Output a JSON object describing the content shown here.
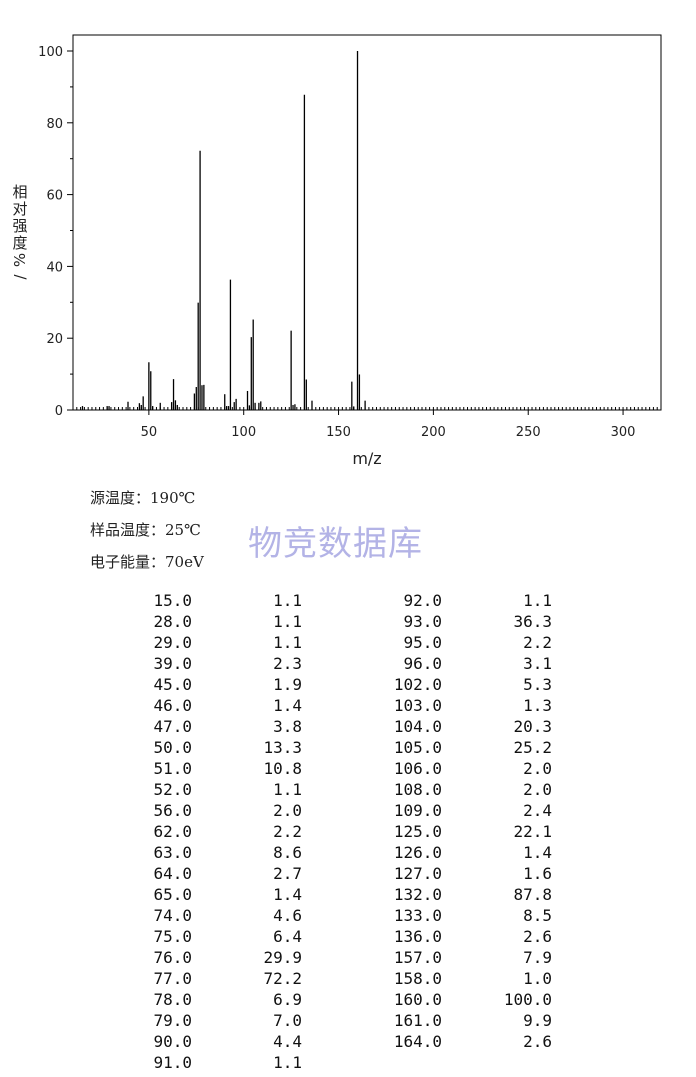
{
  "chart_data": {
    "type": "bar",
    "xlabel": "m/z",
    "ylabel_chars": [
      "相",
      "对",
      "强",
      "度",
      "%",
      "/"
    ],
    "xlim": [
      10,
      320
    ],
    "ylim": [
      0,
      100
    ],
    "xticks": [
      50,
      100,
      150,
      200,
      250,
      300
    ],
    "yticks": [
      0,
      20,
      40,
      60,
      80,
      100
    ],
    "grid": false,
    "peaks": [
      {
        "mz": 15.0,
        "abundance": 1.1
      },
      {
        "mz": 28.0,
        "abundance": 1.1
      },
      {
        "mz": 29.0,
        "abundance": 1.1
      },
      {
        "mz": 39.0,
        "abundance": 2.3
      },
      {
        "mz": 45.0,
        "abundance": 1.9
      },
      {
        "mz": 46.0,
        "abundance": 1.4
      },
      {
        "mz": 47.0,
        "abundance": 3.8
      },
      {
        "mz": 50.0,
        "abundance": 13.3
      },
      {
        "mz": 51.0,
        "abundance": 10.8
      },
      {
        "mz": 52.0,
        "abundance": 1.1
      },
      {
        "mz": 56.0,
        "abundance": 2.0
      },
      {
        "mz": 62.0,
        "abundance": 2.2
      },
      {
        "mz": 63.0,
        "abundance": 8.6
      },
      {
        "mz": 64.0,
        "abundance": 2.7
      },
      {
        "mz": 65.0,
        "abundance": 1.4
      },
      {
        "mz": 74.0,
        "abundance": 4.6
      },
      {
        "mz": 75.0,
        "abundance": 6.4
      },
      {
        "mz": 76.0,
        "abundance": 29.9
      },
      {
        "mz": 77.0,
        "abundance": 72.2
      },
      {
        "mz": 78.0,
        "abundance": 6.9
      },
      {
        "mz": 79.0,
        "abundance": 7.0
      },
      {
        "mz": 90.0,
        "abundance": 4.4
      },
      {
        "mz": 91.0,
        "abundance": 1.1
      },
      {
        "mz": 92.0,
        "abundance": 1.1
      },
      {
        "mz": 93.0,
        "abundance": 36.3
      },
      {
        "mz": 95.0,
        "abundance": 2.2
      },
      {
        "mz": 96.0,
        "abundance": 3.1
      },
      {
        "mz": 102.0,
        "abundance": 5.3
      },
      {
        "mz": 103.0,
        "abundance": 1.3
      },
      {
        "mz": 104.0,
        "abundance": 20.3
      },
      {
        "mz": 105.0,
        "abundance": 25.2
      },
      {
        "mz": 106.0,
        "abundance": 2.0
      },
      {
        "mz": 108.0,
        "abundance": 2.0
      },
      {
        "mz": 109.0,
        "abundance": 2.4
      },
      {
        "mz": 125.0,
        "abundance": 22.1
      },
      {
        "mz": 126.0,
        "abundance": 1.4
      },
      {
        "mz": 127.0,
        "abundance": 1.6
      },
      {
        "mz": 132.0,
        "abundance": 87.8
      },
      {
        "mz": 133.0,
        "abundance": 8.5
      },
      {
        "mz": 136.0,
        "abundance": 2.6
      },
      {
        "mz": 157.0,
        "abundance": 7.9
      },
      {
        "mz": 158.0,
        "abundance": 1.0
      },
      {
        "mz": 160.0,
        "abundance": 100.0
      },
      {
        "mz": 161.0,
        "abundance": 9.9
      },
      {
        "mz": 164.0,
        "abundance": 2.6
      }
    ]
  },
  "conditions": {
    "source_temp": "源温度：190℃",
    "sample_temp": "样品温度：25℃",
    "electron_energy": "电子能量：70eV"
  },
  "watermark": "物竞数据库",
  "table": {
    "left": [
      [
        "15.0",
        "1.1"
      ],
      [
        "28.0",
        "1.1"
      ],
      [
        "29.0",
        "1.1"
      ],
      [
        "39.0",
        "2.3"
      ],
      [
        "45.0",
        "1.9"
      ],
      [
        "46.0",
        "1.4"
      ],
      [
        "47.0",
        "3.8"
      ],
      [
        "50.0",
        "13.3"
      ],
      [
        "51.0",
        "10.8"
      ],
      [
        "52.0",
        "1.1"
      ],
      [
        "56.0",
        "2.0"
      ],
      [
        "62.0",
        "2.2"
      ],
      [
        "63.0",
        "8.6"
      ],
      [
        "64.0",
        "2.7"
      ],
      [
        "65.0",
        "1.4"
      ],
      [
        "74.0",
        "4.6"
      ],
      [
        "75.0",
        "6.4"
      ],
      [
        "76.0",
        "29.9"
      ],
      [
        "77.0",
        "72.2"
      ],
      [
        "78.0",
        "6.9"
      ],
      [
        "79.0",
        "7.0"
      ],
      [
        "90.0",
        "4.4"
      ],
      [
        "91.0",
        "1.1"
      ]
    ],
    "right": [
      [
        "92.0",
        "1.1"
      ],
      [
        "93.0",
        "36.3"
      ],
      [
        "95.0",
        "2.2"
      ],
      [
        "96.0",
        "3.1"
      ],
      [
        "102.0",
        "5.3"
      ],
      [
        "103.0",
        "1.3"
      ],
      [
        "104.0",
        "20.3"
      ],
      [
        "105.0",
        "25.2"
      ],
      [
        "106.0",
        "2.0"
      ],
      [
        "108.0",
        "2.0"
      ],
      [
        "109.0",
        "2.4"
      ],
      [
        "125.0",
        "22.1"
      ],
      [
        "126.0",
        "1.4"
      ],
      [
        "127.0",
        "1.6"
      ],
      [
        "132.0",
        "87.8"
      ],
      [
        "133.0",
        "8.5"
      ],
      [
        "136.0",
        "2.6"
      ],
      [
        "157.0",
        "7.9"
      ],
      [
        "158.0",
        "1.0"
      ],
      [
        "160.0",
        "100.0"
      ],
      [
        "161.0",
        "9.9"
      ],
      [
        "164.0",
        "2.6"
      ]
    ]
  }
}
